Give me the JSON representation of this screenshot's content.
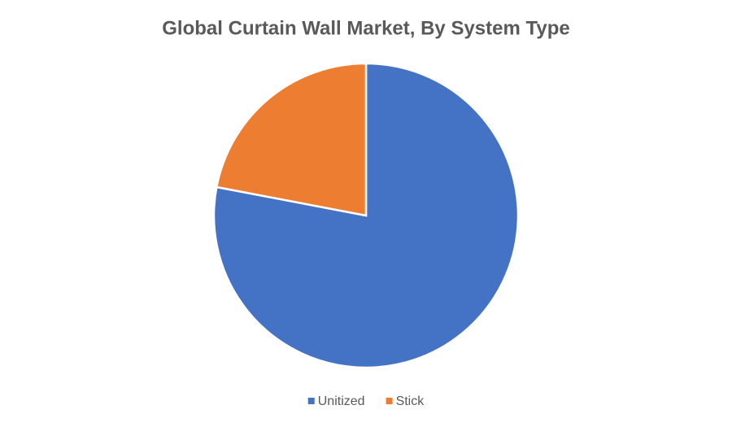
{
  "chart_data": {
    "type": "pie",
    "title": "Global Curtain Wall Market, By System Type",
    "categories": [
      "Unitized",
      "Stick"
    ],
    "values": [
      78,
      22
    ],
    "colors": [
      "#4472c4",
      "#ed7d31"
    ],
    "legend": "bottom"
  }
}
